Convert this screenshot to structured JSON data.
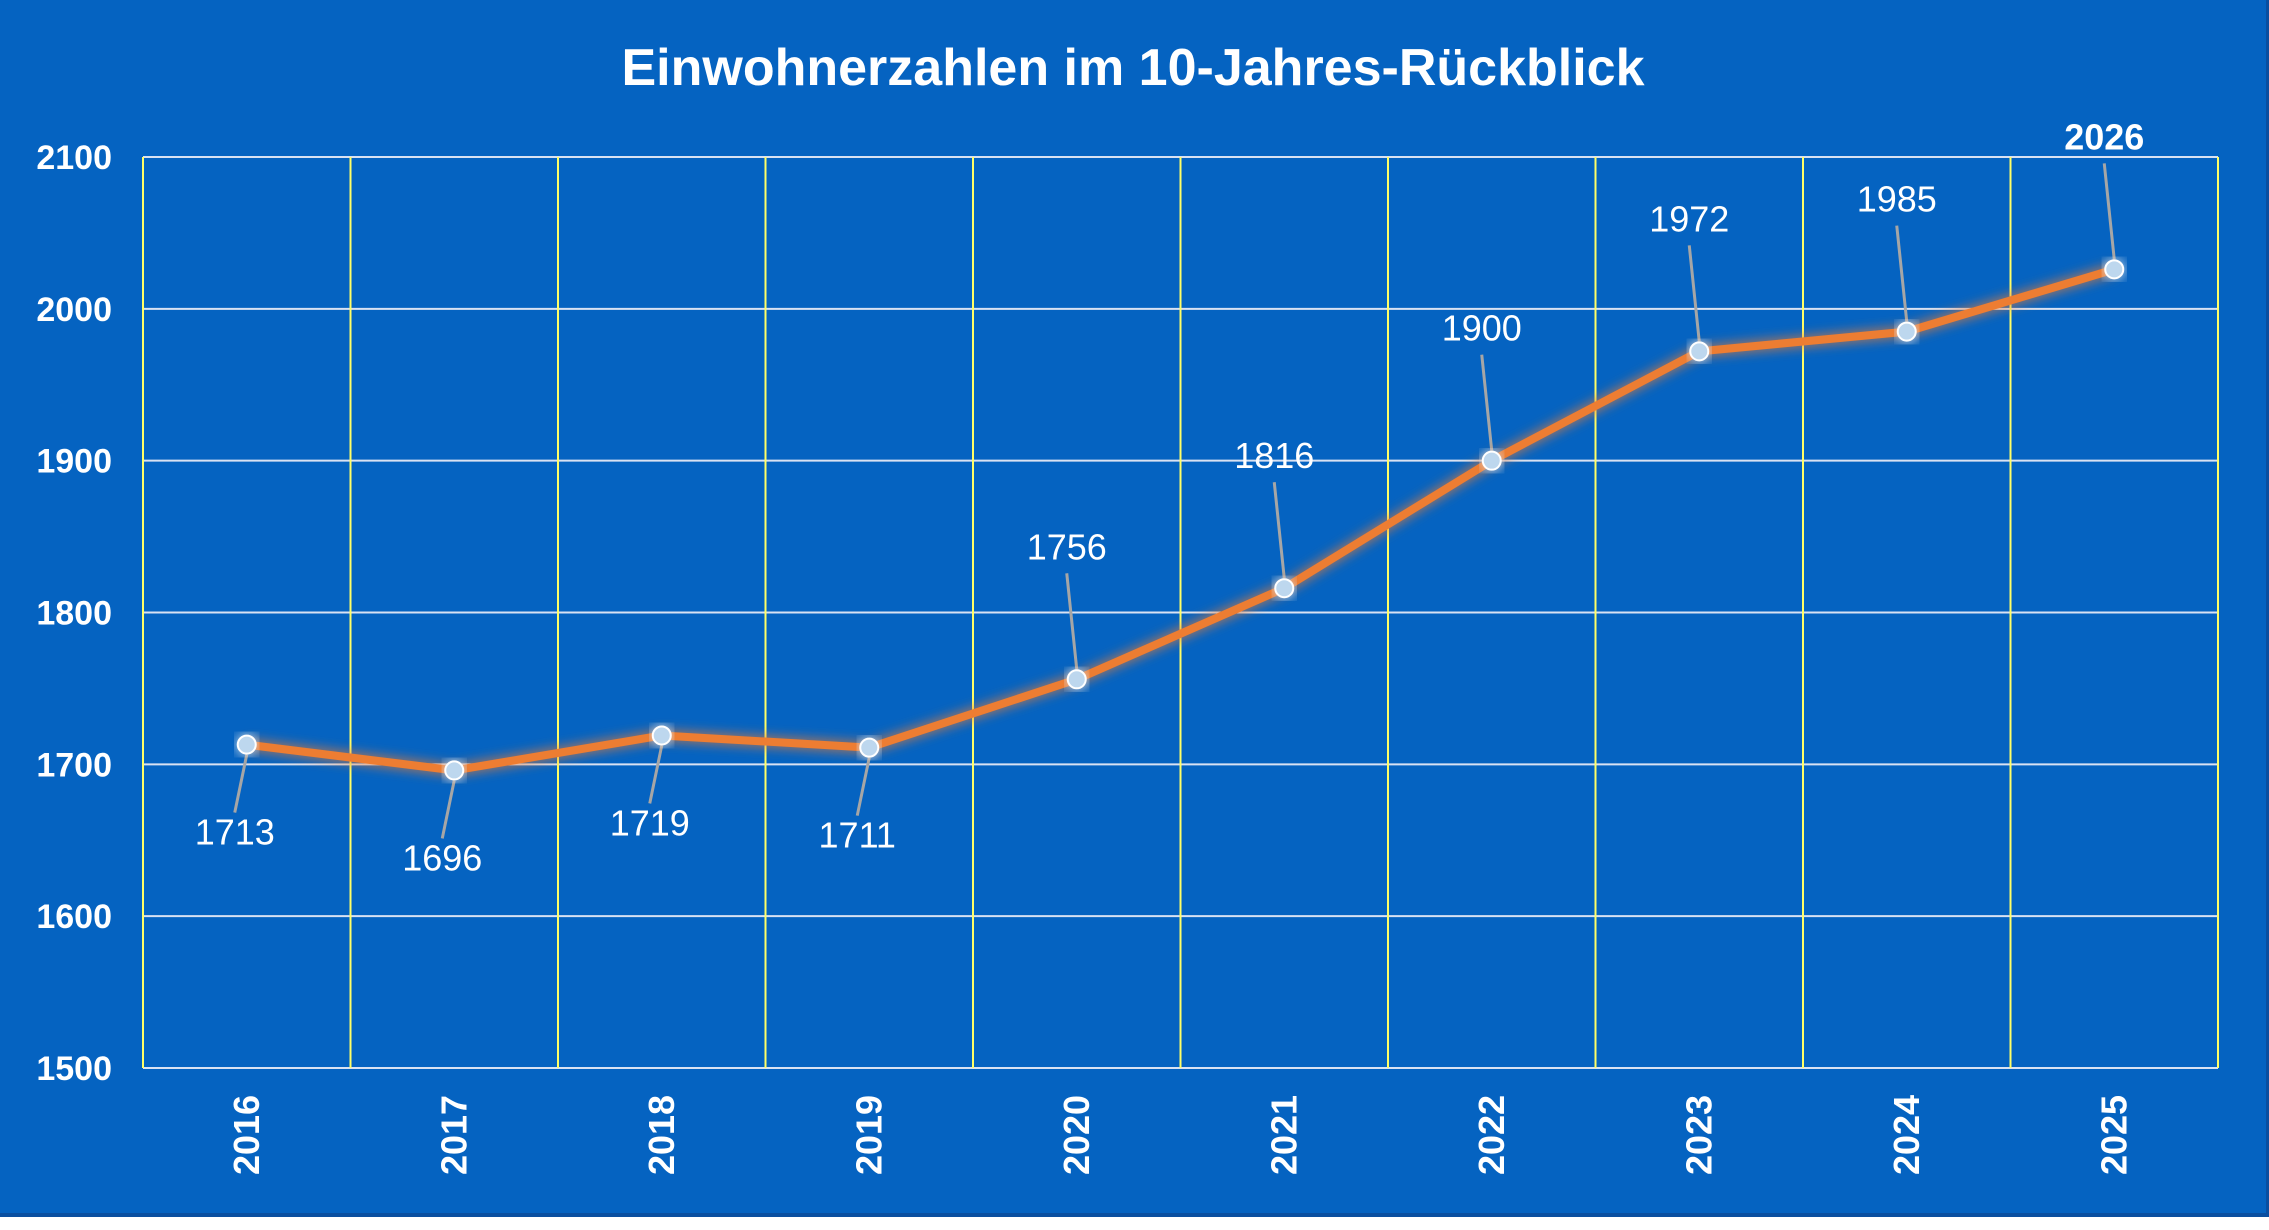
{
  "chart_data": {
    "type": "line",
    "title": "Einwohnerzahlen im 10-Jahres-Rückblick",
    "categories": [
      "2016",
      "2017",
      "2018",
      "2019",
      "2020",
      "2021",
      "2022",
      "2023",
      "2024",
      "2025"
    ],
    "series": [
      {
        "values": [
          1713,
          1696,
          1719,
          1711,
          1756,
          1816,
          1900,
          1972,
          1985,
          2026
        ],
        "data_labels": [
          "1713",
          "1696",
          "1719",
          "1711",
          "1756",
          "1816",
          "1900",
          "1972",
          "1985",
          "2026"
        ],
        "color": "#ed7d31"
      }
    ],
    "y_ticks": [
      "1500",
      "1600",
      "1700",
      "1800",
      "1900",
      "2000",
      "2100"
    ],
    "ylim": [
      1500,
      2100
    ],
    "grid": true,
    "background_color": "#0563c1",
    "grid_color_vertical": "#ffff66",
    "grid_color_horizontal": "#d9e2f3"
  }
}
